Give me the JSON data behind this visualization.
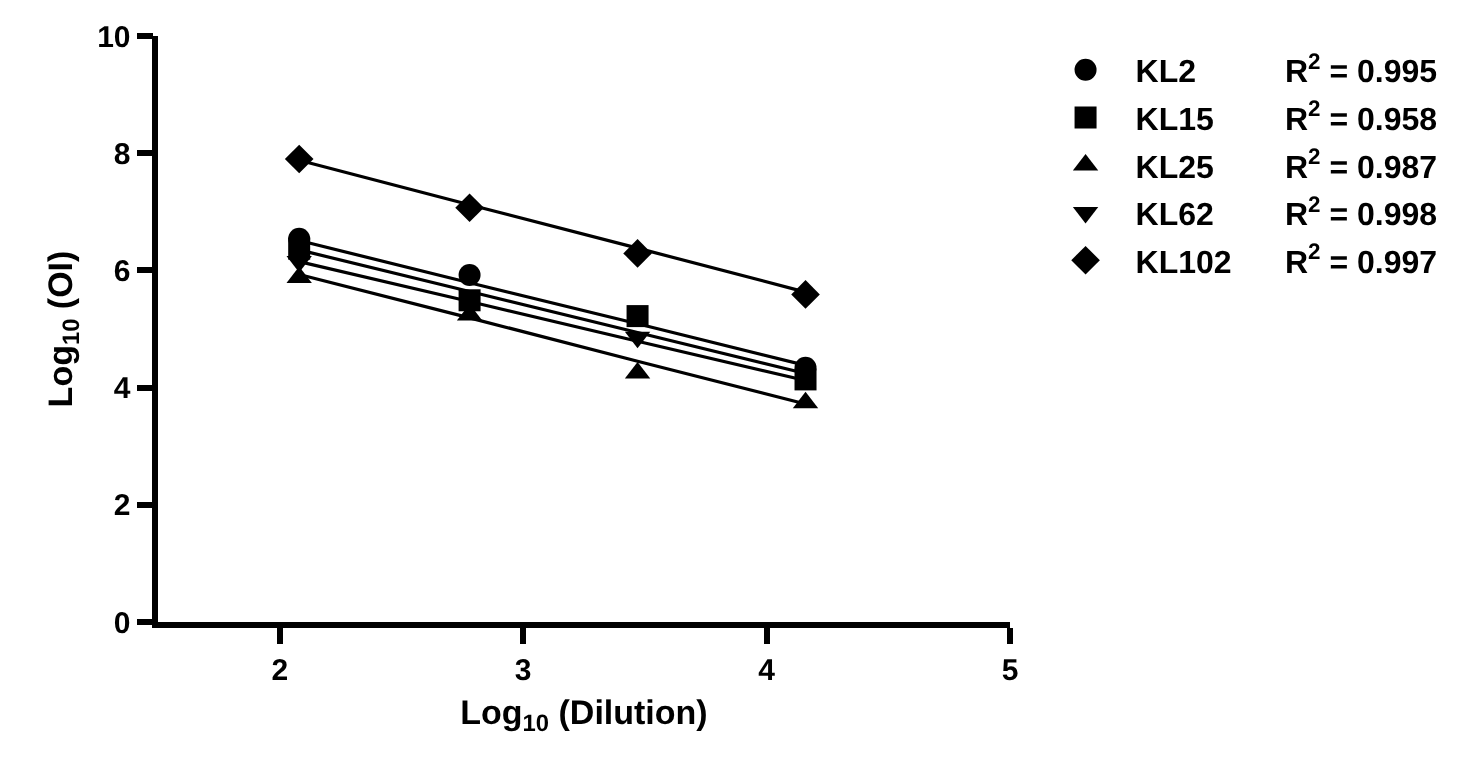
{
  "chart_data": {
    "type": "scatter",
    "xlabel": "Log$_{10}$ (Dilution)",
    "ylabel": "Log$_{10}$ (OI)",
    "xlim": [
      1.5,
      5
    ],
    "xticks": [
      2,
      3,
      4,
      5
    ],
    "ylim": [
      0,
      10
    ],
    "yticks": [
      0,
      2,
      4,
      6,
      8,
      10
    ],
    "legend": "top right",
    "annotations": [
      "R$^{2}$ = 0.995",
      "R$^{2}$ = 0.958",
      "R$^{2}$ = 0.987",
      "R$^{2}$ = 0.998",
      "R$^{2}$ = 0.997"
    ],
    "x": [
      2.08,
      2.78,
      3.47,
      4.16
    ],
    "series": [
      {
        "name": "KL2",
        "color": "#000000",
        "marker": "circle",
        "values": [
          6.54,
          5.92,
          null,
          4.34
        ]
      },
      {
        "name": "KL15",
        "color": "#000000",
        "marker": "square",
        "values": [
          6.37,
          5.49,
          5.22,
          4.14
        ]
      },
      {
        "name": "KL25",
        "color": "#000000",
        "marker": "triangle",
        "values": [
          5.88,
          5.24,
          4.25,
          3.74
        ]
      },
      {
        "name": "KL62",
        "color": "#000000",
        "marker": "triangle-down",
        "values": [
          6.15,
          null,
          4.86,
          null
        ]
      },
      {
        "name": "KL102",
        "color": "#000000",
        "marker": "diamond",
        "values": [
          7.9,
          7.07,
          6.29,
          5.59
        ]
      },
      {
        "type": "line",
        "color": "#000000",
        "marker": "none",
        "values": [
          6.51,
          5.79,
          5.09,
          4.38
        ]
      },
      {
        "type": "line",
        "color": "#000000",
        "marker": "none",
        "values": [
          6.35,
          5.64,
          4.94,
          4.24
        ]
      },
      {
        "type": "line",
        "color": "#000000",
        "marker": "none",
        "values": [
          5.93,
          5.19,
          4.45,
          3.72
        ]
      },
      {
        "type": "line",
        "color": "#000000",
        "marker": "none",
        "values": [
          6.15,
          5.47,
          4.79,
          4.12
        ]
      },
      {
        "type": "line",
        "color": "#000000",
        "marker": "none",
        "values": [
          7.88,
          7.12,
          6.38,
          5.63
        ]
      }
    ]
  }
}
